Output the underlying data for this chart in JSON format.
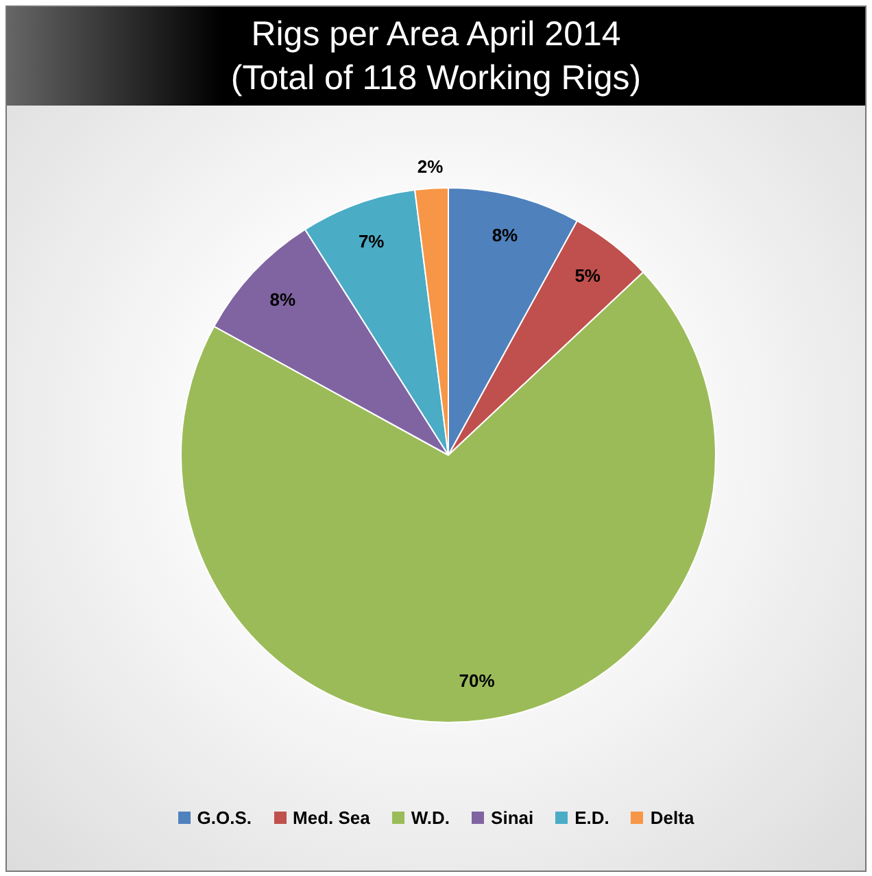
{
  "chart_data": {
    "type": "pie",
    "title": "Rigs per Area April 2014",
    "subtitle": "(Total of 118 Working Rigs)",
    "categories": [
      "G.O.S.",
      "Med. Sea",
      "W.D.",
      "Sinai",
      "E.D.",
      "Delta"
    ],
    "values": [
      8,
      5,
      70,
      8,
      7,
      2
    ],
    "colors": [
      "#4f81bd",
      "#c0504d",
      "#9bbb59",
      "#8064a2",
      "#4bacc6",
      "#f79646"
    ],
    "value_labels": [
      "8%",
      "5%",
      "70%",
      "8%",
      "7%",
      "2%"
    ],
    "legend": "bottom"
  }
}
